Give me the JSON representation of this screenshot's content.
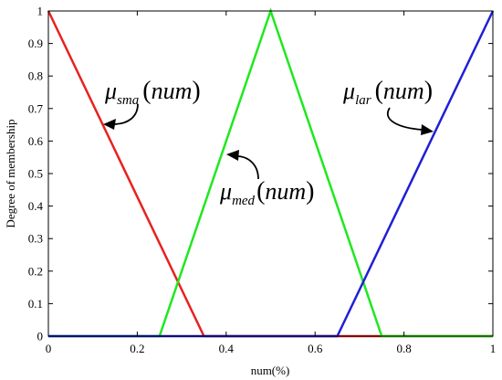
{
  "chart_data": {
    "type": "line",
    "xlabel": "num(%)",
    "ylabel": "Degree of membership",
    "xlim": [
      0,
      1
    ],
    "ylim": [
      0,
      1
    ],
    "xticks": [
      "0",
      "0.2",
      "0.4",
      "0.6",
      "0.8",
      "1"
    ],
    "yticks": [
      "0",
      "0.1",
      "0.2",
      "0.3",
      "0.4",
      "0.5",
      "0.6",
      "0.7",
      "0.8",
      "0.9",
      "1"
    ],
    "grid": false,
    "series": [
      {
        "key": "sma",
        "color": "#e8211f",
        "points": [
          [
            0,
            1
          ],
          [
            0.35,
            0
          ],
          [
            1,
            0
          ]
        ]
      },
      {
        "key": "med",
        "color": "#1fe81f",
        "points": [
          [
            0,
            0
          ],
          [
            0.25,
            0
          ],
          [
            0.5,
            1
          ],
          [
            0.75,
            0
          ],
          [
            1,
            0
          ]
        ]
      },
      {
        "key": "lar",
        "color": "#1f1fd6",
        "points": [
          [
            0,
            0
          ],
          [
            0.65,
            0
          ],
          [
            1,
            1
          ]
        ]
      }
    ],
    "annotations": [
      {
        "key": "sma",
        "symbol": "μ",
        "sub": "sma",
        "arg": "num"
      },
      {
        "key": "med",
        "symbol": "μ",
        "sub": "med",
        "arg": "num"
      },
      {
        "key": "lar",
        "symbol": "μ",
        "sub": "lar",
        "arg": "num"
      }
    ]
  }
}
